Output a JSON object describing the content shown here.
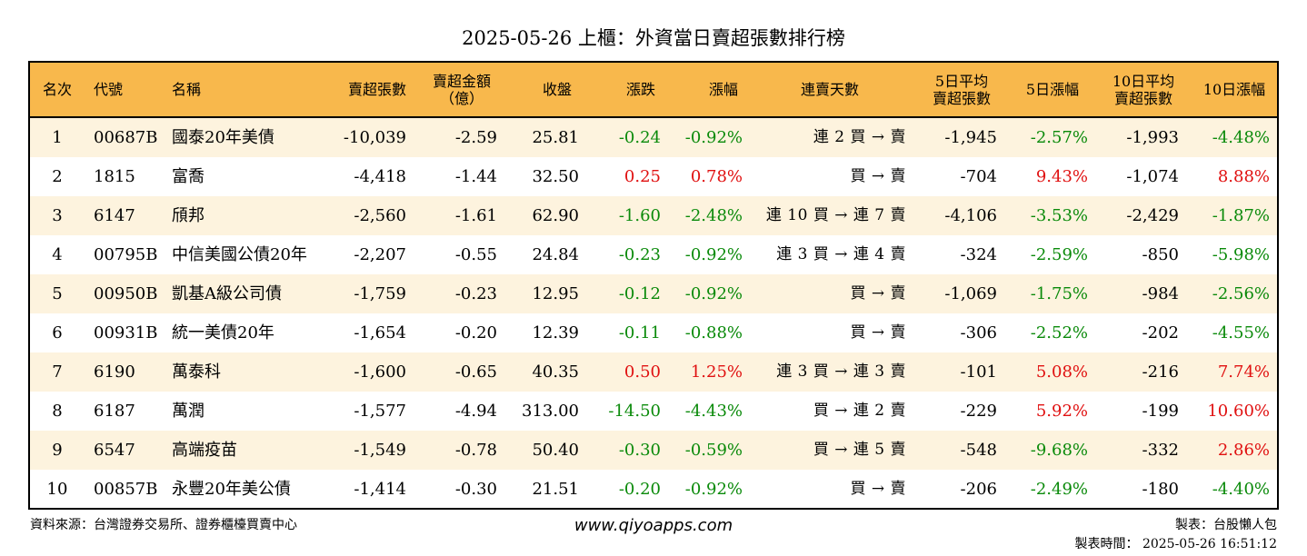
{
  "title": "2025-05-26 上櫃：外資當日賣超張數排行榜",
  "headers": {
    "rank": [
      "名次"
    ],
    "code": [
      "代號"
    ],
    "name": [
      "名稱"
    ],
    "sell_lots": [
      "賣超張數"
    ],
    "sell_amount": [
      "賣超金額",
      "（億）"
    ],
    "close": [
      "收盤"
    ],
    "change": [
      "漲跌"
    ],
    "pct": [
      "漲幅"
    ],
    "streak": [
      "連賣天數"
    ],
    "avg5": [
      "5日平均",
      "賣超張數"
    ],
    "pct5": [
      "5日漲幅"
    ],
    "avg10": [
      "10日平均",
      "賣超張數"
    ],
    "pct10": [
      "10日漲幅"
    ]
  },
  "rows": [
    {
      "rank": "1",
      "code": "00687B",
      "name": "國泰20年美債",
      "sell_lots": "-10,039",
      "sell_amount": "-2.59",
      "close": "25.81",
      "change": "-0.24",
      "pct": "-0.92%",
      "streak": "連 2 買 → 賣",
      "avg5": "-1,945",
      "pct5": "-2.57%",
      "avg10": "-1,993",
      "pct10": "-4.48%"
    },
    {
      "rank": "2",
      "code": "1815",
      "name": "富喬",
      "sell_lots": "-4,418",
      "sell_amount": "-1.44",
      "close": "32.50",
      "change": "0.25",
      "pct": "0.78%",
      "streak": "買 → 賣",
      "avg5": "-704",
      "pct5": "9.43%",
      "avg10": "-1,074",
      "pct10": "8.88%"
    },
    {
      "rank": "3",
      "code": "6147",
      "name": "頎邦",
      "sell_lots": "-2,560",
      "sell_amount": "-1.61",
      "close": "62.90",
      "change": "-1.60",
      "pct": "-2.48%",
      "streak": "連 10 買 → 連 7 賣",
      "avg5": "-4,106",
      "pct5": "-3.53%",
      "avg10": "-2,429",
      "pct10": "-1.87%"
    },
    {
      "rank": "4",
      "code": "00795B",
      "name": "中信美國公債20年",
      "sell_lots": "-2,207",
      "sell_amount": "-0.55",
      "close": "24.84",
      "change": "-0.23",
      "pct": "-0.92%",
      "streak": "連 3 買 → 連 4 賣",
      "avg5": "-324",
      "pct5": "-2.59%",
      "avg10": "-850",
      "pct10": "-5.98%"
    },
    {
      "rank": "5",
      "code": "00950B",
      "name": "凱基A級公司債",
      "sell_lots": "-1,759",
      "sell_amount": "-0.23",
      "close": "12.95",
      "change": "-0.12",
      "pct": "-0.92%",
      "streak": "買 → 賣",
      "avg5": "-1,069",
      "pct5": "-1.75%",
      "avg10": "-984",
      "pct10": "-2.56%"
    },
    {
      "rank": "6",
      "code": "00931B",
      "name": "統一美債20年",
      "sell_lots": "-1,654",
      "sell_amount": "-0.20",
      "close": "12.39",
      "change": "-0.11",
      "pct": "-0.88%",
      "streak": "買 → 賣",
      "avg5": "-306",
      "pct5": "-2.52%",
      "avg10": "-202",
      "pct10": "-4.55%"
    },
    {
      "rank": "7",
      "code": "6190",
      "name": "萬泰科",
      "sell_lots": "-1,600",
      "sell_amount": "-0.65",
      "close": "40.35",
      "change": "0.50",
      "pct": "1.25%",
      "streak": "連 3 買 → 連 3 賣",
      "avg5": "-101",
      "pct5": "5.08%",
      "avg10": "-216",
      "pct10": "7.74%"
    },
    {
      "rank": "8",
      "code": "6187",
      "name": "萬潤",
      "sell_lots": "-1,577",
      "sell_amount": "-4.94",
      "close": "313.00",
      "change": "-14.50",
      "pct": "-4.43%",
      "streak": "買 → 連 2 賣",
      "avg5": "-229",
      "pct5": "5.92%",
      "avg10": "-199",
      "pct10": "10.60%"
    },
    {
      "rank": "9",
      "code": "6547",
      "name": "高端疫苗",
      "sell_lots": "-1,549",
      "sell_amount": "-0.78",
      "close": "50.40",
      "change": "-0.30",
      "pct": "-0.59%",
      "streak": "買 → 連 5 賣",
      "avg5": "-548",
      "pct5": "-9.68%",
      "avg10": "-332",
      "pct10": "2.86%"
    },
    {
      "rank": "10",
      "code": "00857B",
      "name": "永豐20年美公債",
      "sell_lots": "-1,414",
      "sell_amount": "-0.30",
      "close": "21.51",
      "change": "-0.20",
      "pct": "-0.92%",
      "streak": "買 → 賣",
      "avg5": "-206",
      "pct5": "-2.49%",
      "avg10": "-180",
      "pct10": "-4.40%"
    }
  ],
  "colors": {
    "header_bg": "#f8b84c",
    "stripe_bg": "#fdf3de",
    "up": "#e01010",
    "down": "#0a8a0a"
  },
  "footer": {
    "source": "資料來源：台灣證券交易所、證券櫃檯買賣中心",
    "website": "www.qiyoapps.com",
    "maker": "製表：台股懶人包",
    "made_time": "製表時間： 2025-05-26 16:51:12"
  }
}
